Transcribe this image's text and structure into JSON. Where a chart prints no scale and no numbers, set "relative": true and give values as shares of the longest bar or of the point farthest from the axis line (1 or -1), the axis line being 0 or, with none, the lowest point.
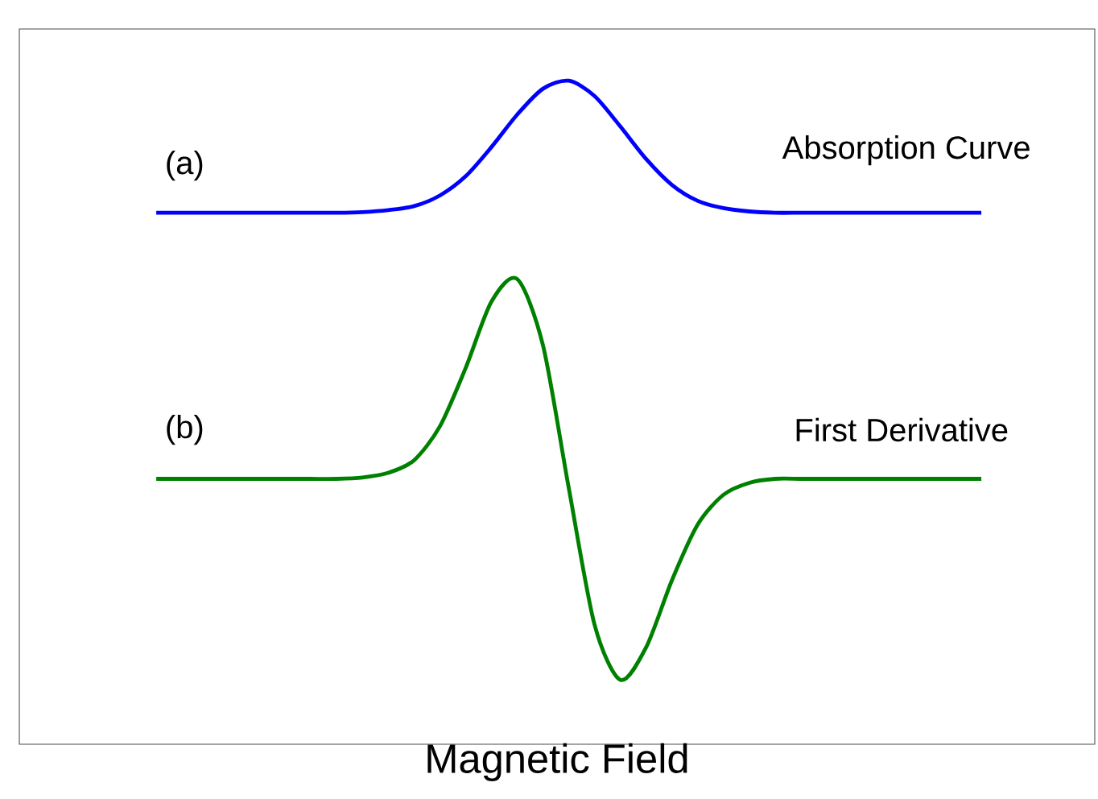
{
  "chart_data": {
    "type": "line",
    "relative": true,
    "xlabel": "Magnetic Field",
    "legend": false,
    "marker": "none",
    "line_style": "solid",
    "categories": [
      null,
      null,
      null,
      null,
      null,
      null,
      null,
      null,
      null,
      null,
      null,
      null,
      null,
      null,
      null,
      null,
      null,
      null,
      null,
      null,
      null,
      null,
      null,
      null,
      null,
      null,
      null,
      null,
      null,
      null,
      null,
      null,
      null
    ],
    "series": [
      {
        "name": "Absorption Curve",
        "color": "#0000ff",
        "values": [
          0.801,
          0.801,
          0.801,
          0.801,
          0.801,
          0.801,
          0.801,
          0.801,
          0.802,
          0.805,
          0.811,
          0.827,
          0.856,
          0.9,
          0.949,
          0.988,
          1.0,
          0.977,
          0.931,
          0.882,
          0.843,
          0.819,
          0.808,
          0.803,
          0.801,
          0.801,
          0.801,
          0.801,
          0.801,
          0.801,
          0.801,
          0.801,
          0.801
        ]
      },
      {
        "name": "First Derivative",
        "color": "#008000",
        "values": [
          0.4,
          0.4,
          0.4,
          0.4,
          0.4,
          0.4,
          0.4,
          0.4,
          0.402,
          0.409,
          0.428,
          0.479,
          0.567,
          0.667,
          0.701,
          0.601,
          0.386,
          0.18,
          0.097,
          0.146,
          0.247,
          0.331,
          0.376,
          0.394,
          0.4,
          0.4,
          0.4,
          0.4,
          0.4,
          0.4,
          0.4,
          0.4,
          0.4
        ]
      }
    ],
    "annotations": [
      "(a)",
      "(b)"
    ]
  }
}
